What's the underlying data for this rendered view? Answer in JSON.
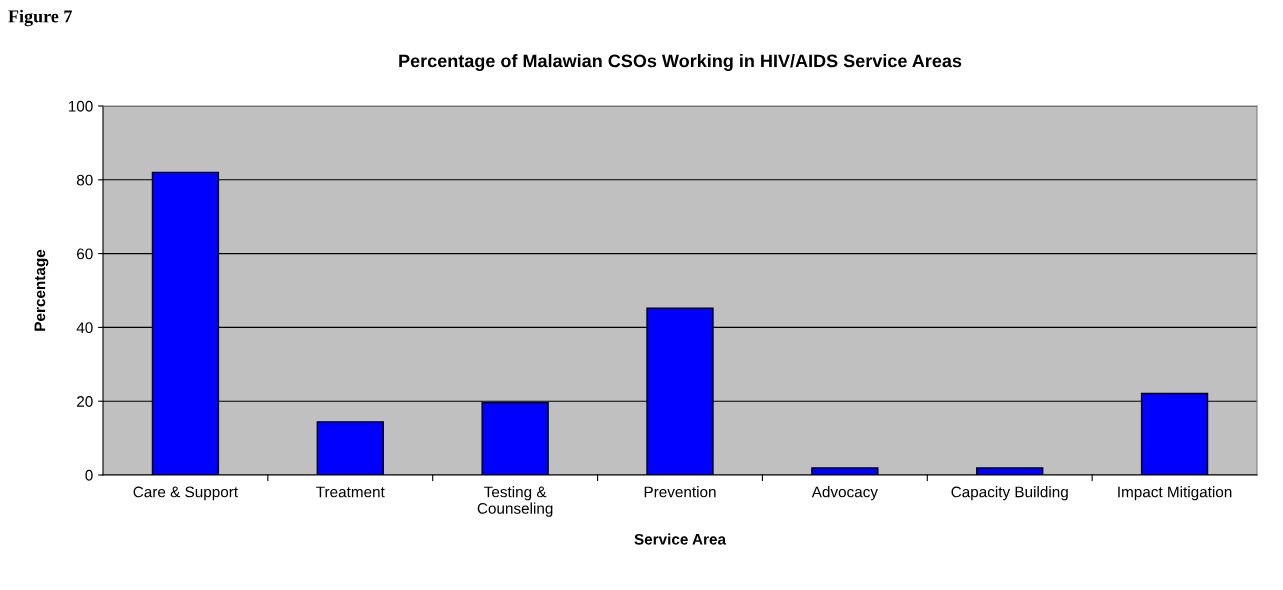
{
  "chart_data": {
    "type": "bar",
    "title": "Percentage of Malawian CSOs Working in HIV/AIDS Service Areas",
    "xlabel": "Service Area",
    "ylabel": "Percentage",
    "categories": [
      "Care & Support",
      "Treatment",
      "Testing &\nCounseling",
      "Prevention",
      "Advocacy",
      "Capacity Building",
      "Impact Mitigation"
    ],
    "values": [
      82,
      14.4,
      19.6,
      45.2,
      1.9,
      1.9,
      22.1
    ],
    "color": "#0000ff",
    "ylim": [
      0,
      100
    ],
    "yticks": [
      0,
      20,
      40,
      60,
      80,
      100
    ],
    "grid": "y",
    "annotations": [
      "Figure 7"
    ]
  }
}
